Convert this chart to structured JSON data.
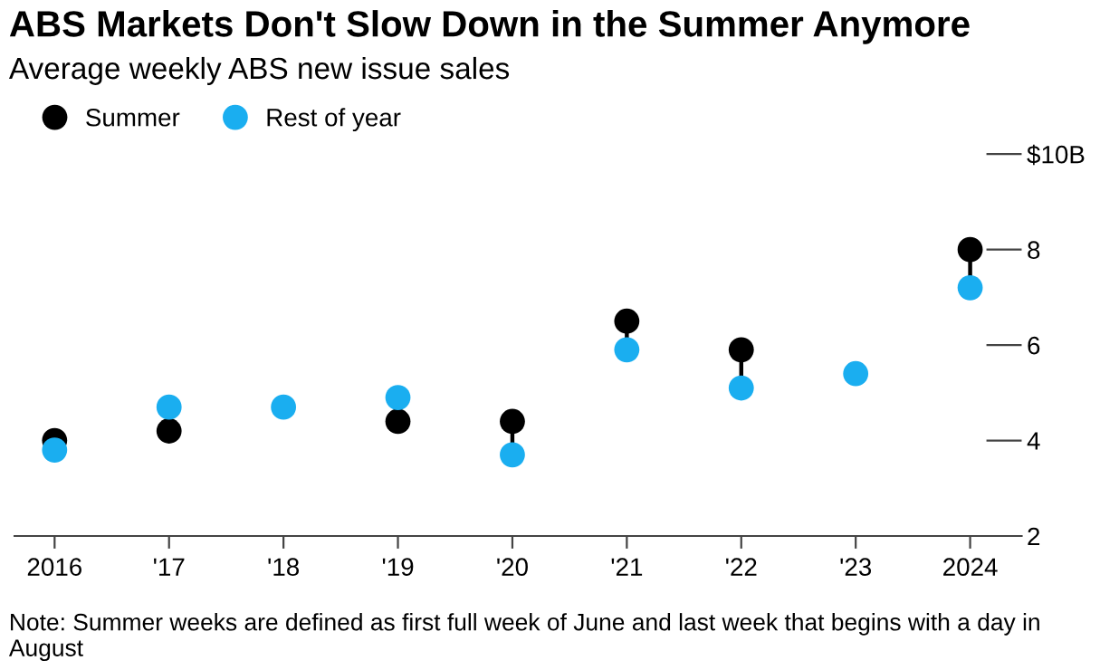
{
  "chart_data": {
    "type": "scatter",
    "title": "ABS Markets Don't Slow Down in the Summer Anymore",
    "subtitle": "Average weekly ABS new issue sales",
    "categories": [
      "2016",
      "'17",
      "'18",
      "'19",
      "'20",
      "'21",
      "'22",
      "'23",
      "2024"
    ],
    "series": [
      {
        "name": "Summer",
        "color": "#000000",
        "values": [
          4.0,
          4.2,
          null,
          4.4,
          4.4,
          6.5,
          5.9,
          null,
          8.0
        ]
      },
      {
        "name": "Rest of year",
        "color": "#1aaef0",
        "values": [
          3.8,
          4.7,
          4.7,
          4.9,
          3.7,
          5.9,
          5.1,
          5.4,
          7.2
        ]
      }
    ],
    "ylim": [
      2,
      10
    ],
    "yticks": [
      2,
      4,
      6,
      8,
      {
        "value": 10,
        "label": "$10B"
      }
    ],
    "marker": "circle",
    "grid": false,
    "legend": "top left",
    "annotations": [
      "Note: Summer weeks are defined as first full week of June and last week that begins with a day in August"
    ]
  }
}
